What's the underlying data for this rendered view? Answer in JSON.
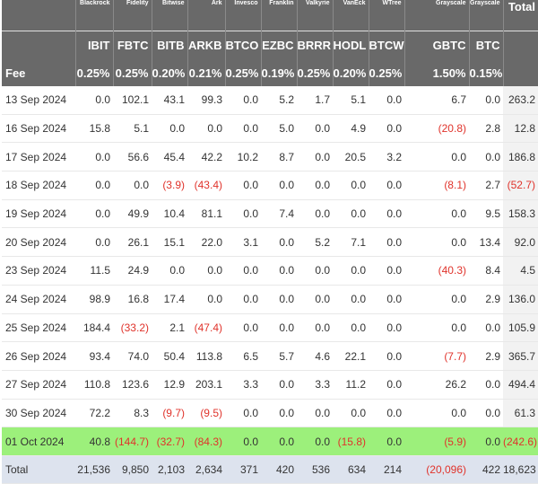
{
  "issuers": [
    "Blackrock",
    "Fidelity",
    "Bitwise",
    "Ark",
    "Invesco",
    "Franklin",
    "Valkyrie",
    "VanEck",
    "WTree",
    "Grayscale",
    "Grayscale"
  ],
  "tickers": [
    "IBIT",
    "FBTC",
    "BITB",
    "ARKB",
    "BTCO",
    "EZBC",
    "BRRR",
    "HODL",
    "BTCW",
    "GBTC",
    "BTC"
  ],
  "total_label": "Total",
  "fee_label": "Fee",
  "fees": [
    "0.25%",
    "0.25%",
    "0.20%",
    "0.21%",
    "0.25%",
    "0.19%",
    "0.25%",
    "0.20%",
    "0.25%",
    "1.50%",
    "0.15%"
  ],
  "rows": [
    {
      "date": "13 Sep 2024",
      "values": [
        "0.0",
        "102.1",
        "43.1",
        "99.3",
        "0.0",
        "5.2",
        "1.7",
        "5.1",
        "0.0",
        "6.7",
        "0.0",
        "263.2"
      ]
    },
    {
      "date": "16 Sep 2024",
      "values": [
        "15.8",
        "5.1",
        "0.0",
        "0.0",
        "0.0",
        "5.0",
        "0.0",
        "4.9",
        "0.0",
        "(20.8)",
        "2.8",
        "12.8"
      ]
    },
    {
      "date": "17 Sep 2024",
      "values": [
        "0.0",
        "56.6",
        "45.4",
        "42.2",
        "10.2",
        "8.7",
        "0.0",
        "20.5",
        "3.2",
        "0.0",
        "0.0",
        "186.8"
      ]
    },
    {
      "date": "18 Sep 2024",
      "values": [
        "0.0",
        "0.0",
        "(3.9)",
        "(43.4)",
        "0.0",
        "0.0",
        "0.0",
        "0.0",
        "0.0",
        "(8.1)",
        "2.7",
        "(52.7)"
      ]
    },
    {
      "date": "19 Sep 2024",
      "values": [
        "0.0",
        "49.9",
        "10.4",
        "81.1",
        "0.0",
        "7.4",
        "0.0",
        "0.0",
        "0.0",
        "0.0",
        "9.5",
        "158.3"
      ]
    },
    {
      "date": "20 Sep 2024",
      "values": [
        "0.0",
        "26.1",
        "15.1",
        "22.0",
        "3.1",
        "0.0",
        "5.2",
        "7.1",
        "0.0",
        "0.0",
        "13.4",
        "92.0"
      ]
    },
    {
      "date": "23 Sep 2024",
      "values": [
        "11.5",
        "24.9",
        "0.0",
        "0.0",
        "0.0",
        "0.0",
        "0.0",
        "0.0",
        "0.0",
        "(40.3)",
        "8.4",
        "4.5"
      ]
    },
    {
      "date": "24 Sep 2024",
      "values": [
        "98.9",
        "16.8",
        "17.4",
        "0.0",
        "0.0",
        "0.0",
        "0.0",
        "0.0",
        "0.0",
        "0.0",
        "2.9",
        "136.0"
      ]
    },
    {
      "date": "25 Sep 2024",
      "values": [
        "184.4",
        "(33.2)",
        "2.1",
        "(47.4)",
        "0.0",
        "0.0",
        "0.0",
        "0.0",
        "0.0",
        "0.0",
        "0.0",
        "105.9"
      ]
    },
    {
      "date": "26 Sep 2024",
      "values": [
        "93.4",
        "74.0",
        "50.4",
        "113.8",
        "6.5",
        "5.7",
        "4.6",
        "22.1",
        "0.0",
        "(7.7)",
        "2.9",
        "365.7"
      ]
    },
    {
      "date": "27 Sep 2024",
      "values": [
        "110.8",
        "123.6",
        "12.9",
        "203.1",
        "3.3",
        "0.0",
        "3.3",
        "11.2",
        "0.0",
        "26.2",
        "0.0",
        "494.4"
      ]
    },
    {
      "date": "30 Sep 2024",
      "values": [
        "72.2",
        "8.3",
        "(9.7)",
        "(9.5)",
        "0.0",
        "0.0",
        "0.0",
        "0.0",
        "0.0",
        "0.0",
        "0.0",
        "61.3"
      ]
    },
    {
      "date": "01 Oct 2024",
      "values": [
        "40.8",
        "(144.7)",
        "(32.7)",
        "(84.3)",
        "0.0",
        "0.0",
        "0.0",
        "(15.8)",
        "0.0",
        "(5.9)",
        "0.0",
        "(242.6)"
      ],
      "highlight": true
    }
  ],
  "totals": {
    "label": "Total",
    "values": [
      "21,536",
      "9,850",
      "2,103",
      "2,634",
      "371",
      "420",
      "536",
      "634",
      "214",
      "(20,096)",
      "422",
      "18,623"
    ]
  },
  "colors": {
    "header_bg": "#696969",
    "highlight_row": "#9cf07b",
    "total_row": "#dde3ee",
    "negative": "#e0332b"
  }
}
